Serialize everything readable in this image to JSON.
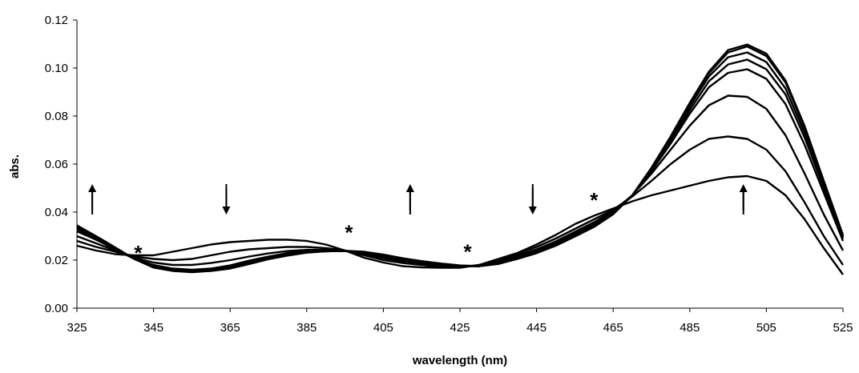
{
  "chart_data": {
    "type": "line",
    "title": "",
    "xlabel": "wavelength (nm)",
    "ylabel": "abs.",
    "xlim": [
      325,
      525
    ],
    "ylim": [
      0,
      0.12
    ],
    "xticks": [
      "325",
      "345",
      "365",
      "385",
      "405",
      "425",
      "445",
      "465",
      "485",
      "505",
      "525"
    ],
    "yticks": [
      "0.00",
      "0.02",
      "0.04",
      "0.06",
      "0.08",
      "0.10",
      "0.12"
    ],
    "grid": false,
    "legend": "none",
    "x": [
      325,
      330,
      335,
      340,
      345,
      350,
      355,
      360,
      365,
      370,
      375,
      380,
      385,
      390,
      395,
      400,
      405,
      410,
      415,
      420,
      425,
      430,
      435,
      440,
      445,
      450,
      455,
      460,
      465,
      470,
      475,
      480,
      485,
      490,
      495,
      500,
      505,
      510,
      515,
      520,
      525
    ],
    "series": [
      {
        "values": [
          0.026,
          0.024,
          0.0225,
          0.022,
          0.022,
          0.0235,
          0.025,
          0.0265,
          0.0275,
          0.028,
          0.0285,
          0.0285,
          0.028,
          0.0265,
          0.024,
          0.021,
          0.019,
          0.0175,
          0.017,
          0.0168,
          0.0168,
          0.018,
          0.0205,
          0.023,
          0.0265,
          0.0305,
          0.035,
          0.0385,
          0.0415,
          0.0445,
          0.047,
          0.049,
          0.051,
          0.053,
          0.0545,
          0.055,
          0.053,
          0.047,
          0.037,
          0.025,
          0.014
        ]
      },
      {
        "values": [
          0.028,
          0.0255,
          0.0235,
          0.0215,
          0.0205,
          0.02,
          0.0205,
          0.022,
          0.0235,
          0.0245,
          0.025,
          0.0255,
          0.0255,
          0.025,
          0.024,
          0.022,
          0.02,
          0.0188,
          0.018,
          0.0172,
          0.017,
          0.018,
          0.02,
          0.0225,
          0.0255,
          0.029,
          0.033,
          0.037,
          0.041,
          0.0465,
          0.053,
          0.06,
          0.066,
          0.0705,
          0.0715,
          0.0705,
          0.066,
          0.057,
          0.044,
          0.03,
          0.018
        ]
      },
      {
        "values": [
          0.03,
          0.027,
          0.024,
          0.021,
          0.019,
          0.018,
          0.018,
          0.0188,
          0.02,
          0.0215,
          0.0228,
          0.0238,
          0.0243,
          0.0243,
          0.024,
          0.0225,
          0.0208,
          0.0195,
          0.0185,
          0.0178,
          0.0172,
          0.0178,
          0.0195,
          0.0218,
          0.0245,
          0.0278,
          0.0318,
          0.0358,
          0.0405,
          0.047,
          0.056,
          0.066,
          0.076,
          0.0845,
          0.0885,
          0.088,
          0.083,
          0.072,
          0.056,
          0.039,
          0.024
        ]
      },
      {
        "values": [
          0.032,
          0.0285,
          0.0245,
          0.0205,
          0.018,
          0.0165,
          0.016,
          0.0165,
          0.0178,
          0.0198,
          0.0215,
          0.023,
          0.0238,
          0.024,
          0.0238,
          0.0228,
          0.0212,
          0.0198,
          0.0188,
          0.018,
          0.0175,
          0.0175,
          0.019,
          0.0212,
          0.0238,
          0.0272,
          0.031,
          0.035,
          0.0398,
          0.047,
          0.057,
          0.0685,
          0.081,
          0.092,
          0.098,
          0.0995,
          0.0955,
          0.085,
          0.068,
          0.048,
          0.028
        ]
      },
      {
        "values": [
          0.033,
          0.029,
          0.0248,
          0.0205,
          0.0175,
          0.016,
          0.0155,
          0.016,
          0.0172,
          0.0192,
          0.021,
          0.0225,
          0.0235,
          0.0238,
          0.0238,
          0.023,
          0.0215,
          0.02,
          0.019,
          0.0182,
          0.0175,
          0.0175,
          0.0188,
          0.021,
          0.0235,
          0.0268,
          0.0305,
          0.0345,
          0.0395,
          0.047,
          0.0575,
          0.0695,
          0.0825,
          0.0945,
          0.1015,
          0.1035,
          0.0995,
          0.089,
          0.071,
          0.05,
          0.029
        ]
      },
      {
        "values": [
          0.0335,
          0.0295,
          0.025,
          0.0205,
          0.0172,
          0.0158,
          0.0153,
          0.0158,
          0.0168,
          0.0188,
          0.0207,
          0.0222,
          0.0233,
          0.0237,
          0.0238,
          0.0232,
          0.0218,
          0.0203,
          0.0192,
          0.0184,
          0.0176,
          0.0175,
          0.0186,
          0.0208,
          0.0232,
          0.0265,
          0.0302,
          0.0342,
          0.0393,
          0.047,
          0.058,
          0.0705,
          0.084,
          0.0965,
          0.1045,
          0.1065,
          0.1025,
          0.0915,
          0.073,
          0.051,
          0.0295
        ]
      },
      {
        "values": [
          0.034,
          0.0298,
          0.0252,
          0.0205,
          0.017,
          0.0156,
          0.0151,
          0.0156,
          0.0166,
          0.0185,
          0.0205,
          0.022,
          0.0232,
          0.0237,
          0.0238,
          0.0234,
          0.0221,
          0.0206,
          0.0194,
          0.0185,
          0.0177,
          0.0175,
          0.0185,
          0.0206,
          0.023,
          0.0262,
          0.03,
          0.034,
          0.0392,
          0.047,
          0.0582,
          0.071,
          0.085,
          0.0978,
          0.1065,
          0.109,
          0.105,
          0.094,
          0.075,
          0.0525,
          0.03
        ]
      },
      {
        "values": [
          0.0345,
          0.03,
          0.0253,
          0.0205,
          0.0169,
          0.0155,
          0.015,
          0.0155,
          0.0165,
          0.0184,
          0.0204,
          0.0219,
          0.0231,
          0.0237,
          0.0239,
          0.0235,
          0.0223,
          0.0208,
          0.0196,
          0.0186,
          0.0178,
          0.0175,
          0.0184,
          0.0205,
          0.0229,
          0.026,
          0.0298,
          0.0338,
          0.0391,
          0.047,
          0.0585,
          0.0715,
          0.0855,
          0.0985,
          0.1075,
          0.1098,
          0.106,
          0.0948,
          0.0758,
          0.053,
          0.0305
        ]
      }
    ],
    "annotations": {
      "arrows": [
        {
          "x": 329,
          "direction": "up"
        },
        {
          "x": 364,
          "direction": "down"
        },
        {
          "x": 412,
          "direction": "up"
        },
        {
          "x": 444,
          "direction": "down"
        },
        {
          "x": 499,
          "direction": "up"
        }
      ],
      "stars": [
        {
          "text": "*",
          "x": 341,
          "y": 0.024
        },
        {
          "text": "*",
          "x": 396,
          "y": 0.0325
        },
        {
          "text": "*",
          "x": 427,
          "y": 0.0245
        },
        {
          "text": "*",
          "x": 460,
          "y": 0.046
        }
      ]
    }
  }
}
